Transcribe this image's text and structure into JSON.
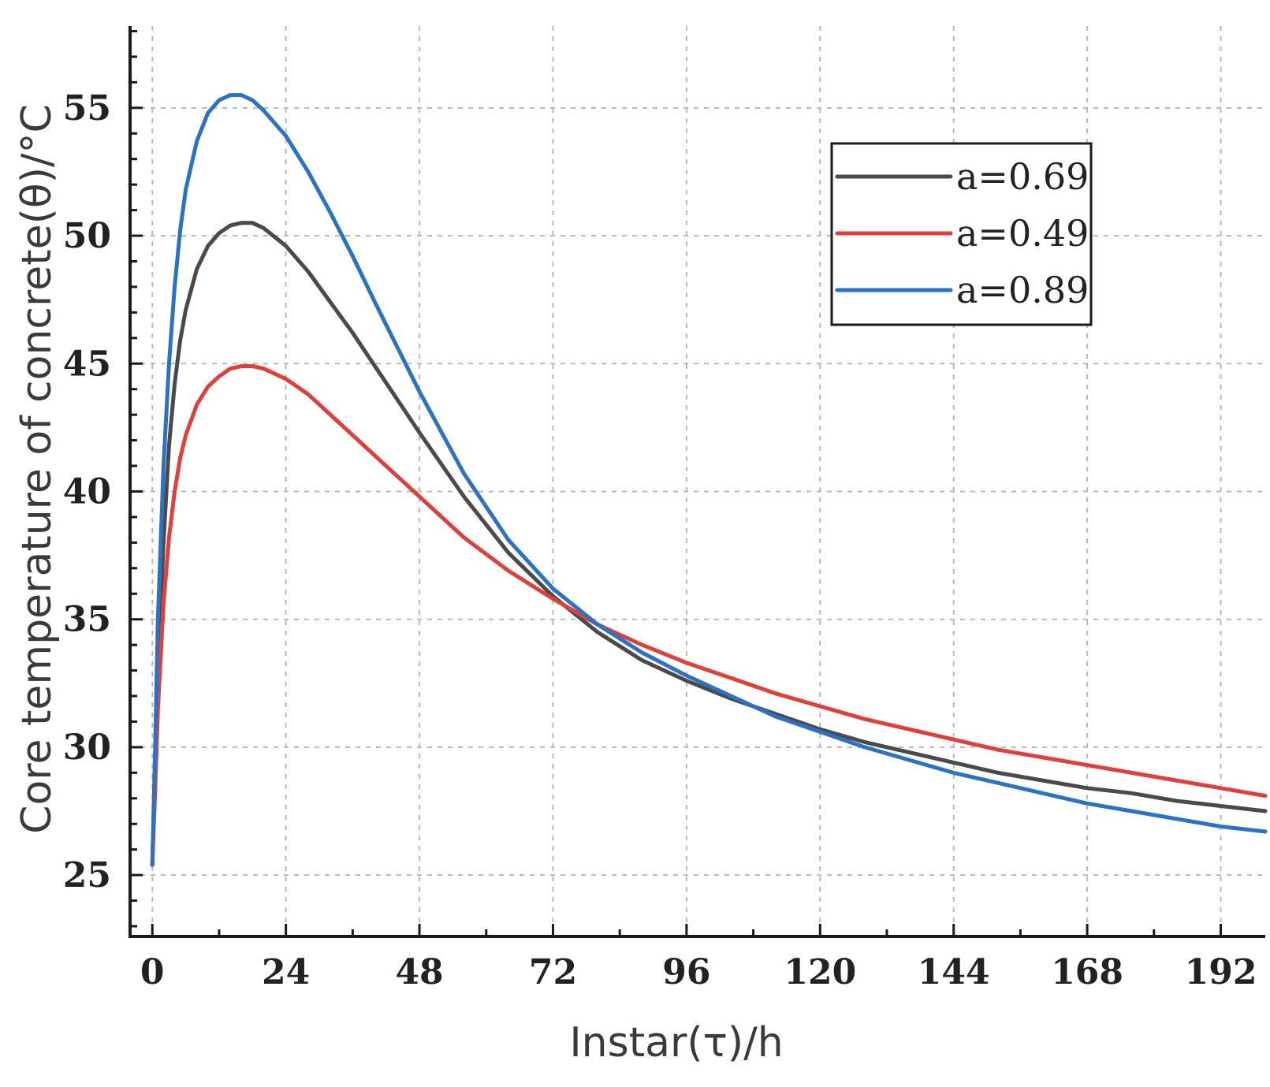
{
  "chart_data": {
    "type": "line",
    "title": "",
    "xlabel": "Instar(τ)/h",
    "ylabel": "Core temperature of concrete(θ)/°C",
    "xlim": [
      -4,
      200
    ],
    "ylim": [
      22.6,
      58.2
    ],
    "x_ticks": [
      0,
      24,
      48,
      72,
      96,
      120,
      144,
      168,
      192
    ],
    "x_tick_labels": [
      "0",
      "24",
      "48",
      "72",
      "96",
      "120",
      "144",
      "168",
      "192"
    ],
    "y_ticks": [
      25,
      30,
      35,
      40,
      45,
      50,
      55
    ],
    "y_tick_labels": [
      "25",
      "30",
      "35",
      "40",
      "45",
      "50",
      "55"
    ],
    "grid": true,
    "legend_position": "top-right",
    "series": [
      {
        "name": "a=0.69",
        "color": "#4a4a4a",
        "x": [
          0,
          0.5,
          1,
          2,
          3,
          4,
          5,
          6,
          8,
          10,
          12,
          14,
          16,
          18,
          20,
          24,
          28,
          32,
          36,
          40,
          48,
          56,
          64,
          72,
          80,
          88,
          96,
          104,
          112,
          120,
          128,
          136,
          144,
          152,
          160,
          168,
          176,
          184,
          192,
          200
        ],
        "y": [
          25.4,
          29,
          33,
          38,
          41.8,
          44.2,
          45.9,
          47.1,
          48.7,
          49.6,
          50.1,
          50.4,
          50.5,
          50.5,
          50.3,
          49.6,
          48.6,
          47.4,
          46.2,
          44.9,
          42.3,
          39.8,
          37.6,
          35.9,
          34.5,
          33.4,
          32.6,
          31.9,
          31.3,
          30.7,
          30.2,
          29.8,
          29.4,
          29.0,
          28.7,
          28.4,
          28.2,
          27.9,
          27.7,
          27.5
        ]
      },
      {
        "name": "a=0.49",
        "color": "#e0403c",
        "x": [
          0,
          0.5,
          1,
          2,
          3,
          4,
          5,
          6,
          8,
          10,
          12,
          14,
          16,
          18,
          20,
          24,
          28,
          32,
          36,
          40,
          48,
          56,
          64,
          72,
          80,
          88,
          96,
          104,
          112,
          120,
          128,
          136,
          144,
          152,
          160,
          168,
          176,
          184,
          192,
          200
        ],
        "y": [
          25.4,
          28.3,
          31.5,
          35.6,
          38.2,
          40,
          41.3,
          42.2,
          43.4,
          44.1,
          44.5,
          44.8,
          44.9,
          44.9,
          44.8,
          44.4,
          43.8,
          43.0,
          42.2,
          41.4,
          39.8,
          38.2,
          36.9,
          35.8,
          34.8,
          34.0,
          33.3,
          32.7,
          32.1,
          31.6,
          31.1,
          30.7,
          30.3,
          29.9,
          29.6,
          29.3,
          29.0,
          28.7,
          28.4,
          28.1
        ]
      },
      {
        "name": "a=0.89",
        "color": "#2c72c4",
        "x": [
          0,
          0.5,
          1,
          2,
          3,
          4,
          5,
          6,
          8,
          10,
          12,
          14,
          16,
          18,
          20,
          24,
          28,
          32,
          36,
          40,
          48,
          56,
          64,
          72,
          80,
          88,
          96,
          104,
          112,
          120,
          128,
          136,
          144,
          152,
          160,
          168,
          176,
          184,
          192,
          200
        ],
        "y": [
          25.4,
          30,
          35,
          41,
          45,
          48,
          50.2,
          51.8,
          53.7,
          54.8,
          55.3,
          55.5,
          55.5,
          55.3,
          54.9,
          53.9,
          52.5,
          50.9,
          49.2,
          47.4,
          43.9,
          40.7,
          38.1,
          36.2,
          34.8,
          33.7,
          32.8,
          32.0,
          31.2,
          30.6,
          30.0,
          29.5,
          29.0,
          28.6,
          28.2,
          27.8,
          27.5,
          27.2,
          26.9,
          26.7
        ]
      }
    ]
  }
}
